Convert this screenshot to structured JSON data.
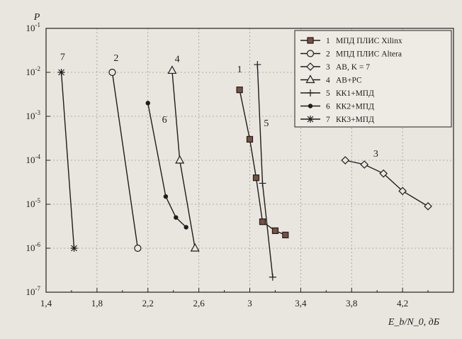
{
  "chart_data": {
    "type": "line",
    "xlabel": "E_b/N_0, дБ",
    "ylabel": "P",
    "xlim": [
      1.4,
      4.6
    ],
    "ylim_log10": [
      -7,
      -1
    ],
    "y_scale": "log",
    "x_ticks": [
      1.4,
      1.8,
      2.2,
      2.6,
      3.0,
      3.4,
      3.8,
      4.2
    ],
    "x_tick_labels": [
      "1,4",
      "1,8",
      "2,2",
      "2,6",
      "3",
      "3,4",
      "3,8",
      "4,2"
    ],
    "y_ticks": [
      -7,
      -6,
      -5,
      -4,
      -3,
      -2,
      -1
    ],
    "y_tick_base": "10",
    "y_tick_exps": [
      "-7",
      "-6",
      "-5",
      "-4",
      "-3",
      "-2",
      "-1"
    ],
    "grid": true,
    "legend_position": "top-right",
    "series": [
      {
        "id": "1",
        "name": "МПД ПЛИС Xilinx",
        "marker": "square",
        "x": [
          2.92,
          3.0,
          3.05,
          3.1,
          3.2,
          3.28
        ],
        "y": [
          0.004,
          0.0003,
          4e-05,
          4e-06,
          2.5e-06,
          2e-06
        ]
      },
      {
        "id": "2",
        "name": "МПД ПЛИС Altera",
        "marker": "circle",
        "x": [
          1.92,
          2.12
        ],
        "y": [
          0.01,
          1e-06
        ]
      },
      {
        "id": "3",
        "name": "АВ, K = 7",
        "marker": "diamond",
        "x": [
          3.75,
          3.9,
          4.05,
          4.2,
          4.4
        ],
        "y": [
          0.0001,
          8e-05,
          5e-05,
          2e-05,
          9e-06
        ]
      },
      {
        "id": "4",
        "name": "АВ+РС",
        "marker": "triangle",
        "x": [
          2.39,
          2.45,
          2.57
        ],
        "y": [
          0.011,
          0.0001,
          1e-06
        ]
      },
      {
        "id": "5",
        "name": "КК1+МПД",
        "marker": "plus",
        "x": [
          3.06,
          3.1,
          3.18
        ],
        "y": [
          0.015,
          3e-05,
          2.2e-07
        ]
      },
      {
        "id": "6",
        "name": "КК2+МПД",
        "marker": "dot",
        "x": [
          2.2,
          2.34,
          2.42,
          2.5
        ],
        "y": [
          0.002,
          1.5e-05,
          5e-06,
          3e-06
        ]
      },
      {
        "id": "7",
        "name": "КК3+МПД",
        "marker": "star",
        "x": [
          1.52,
          1.62
        ],
        "y": [
          0.01,
          1e-06
        ]
      }
    ],
    "curve_labels": [
      {
        "text": "1",
        "x": 2.92,
        "y": 0.01
      },
      {
        "text": "2",
        "x": 1.95,
        "y": 0.018
      },
      {
        "text": "3",
        "x": 3.99,
        "y": 0.00012
      },
      {
        "text": "4",
        "x": 2.43,
        "y": 0.017
      },
      {
        "text": "5",
        "x": 3.13,
        "y": 0.0006
      },
      {
        "text": "6",
        "x": 2.33,
        "y": 0.00072
      },
      {
        "text": "7",
        "x": 1.53,
        "y": 0.019
      }
    ]
  }
}
